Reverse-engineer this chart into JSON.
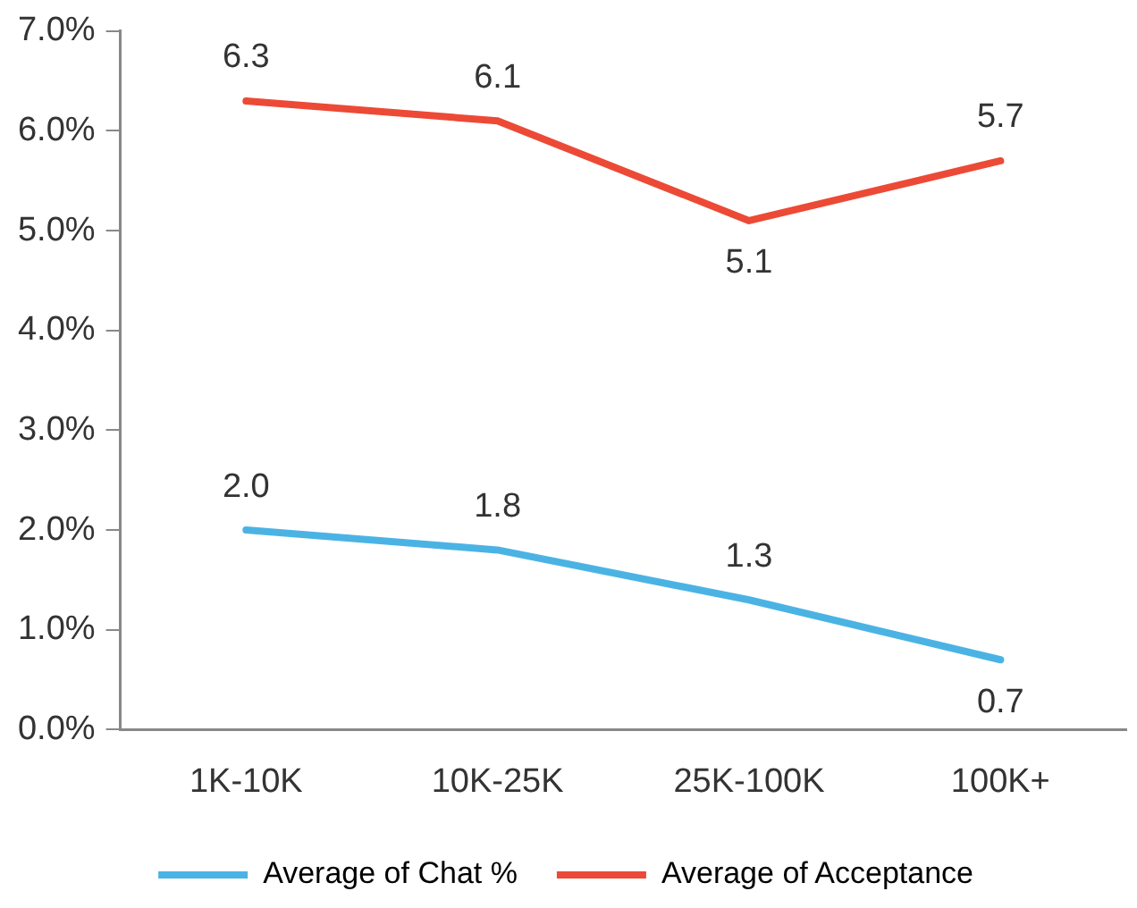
{
  "chart_data": {
    "type": "line",
    "categories": [
      "1K-10K",
      "10K-25K",
      "25K-100K",
      "100K+"
    ],
    "series": [
      {
        "name": "Average of Chat %",
        "color": "#4bb3e4",
        "values": [
          2.0,
          1.8,
          1.3,
          0.7
        ],
        "value_labels": [
          "2.0",
          "1.8",
          "1.3",
          "0.7"
        ]
      },
      {
        "name": "Average of Acceptance",
        "color": "#ec4a36",
        "values": [
          6.3,
          6.1,
          5.1,
          5.7
        ],
        "value_labels": [
          "6.3",
          "6.1",
          "5.1",
          "5.7"
        ]
      }
    ],
    "ylim": [
      0,
      7
    ],
    "yticks": [
      {
        "value": 0,
        "label": "0.0%"
      },
      {
        "value": 1,
        "label": "1.0%"
      },
      {
        "value": 2,
        "label": "2.0%"
      },
      {
        "value": 3,
        "label": "3.0%"
      },
      {
        "value": 4,
        "label": "4.0%"
      },
      {
        "value": 5,
        "label": "5.0%"
      },
      {
        "value": 6,
        "label": "6.0%"
      },
      {
        "value": 7,
        "label": "7.0%"
      }
    ],
    "grid": false,
    "legend": "bottom",
    "marker": "none",
    "line_style": "solid"
  }
}
